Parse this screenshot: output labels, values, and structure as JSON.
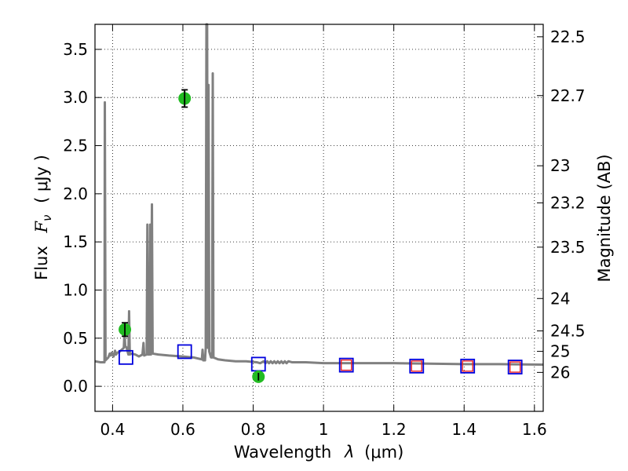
{
  "chart_data": {
    "type": "scatter",
    "xlabel_text": "Wavelength",
    "xlabel_lambda": "λ",
    "xlabel_unit": "(μm)",
    "ylabel_text": "Flux",
    "ylabel_symbol": "F",
    "ylabel_sub": "ν",
    "ylabel_unit": "( μJy )",
    "y2label": "Magnitude (AB)",
    "xlim": [
      0.35,
      1.625
    ],
    "ylim": [
      -0.26,
      3.76
    ],
    "grid": true,
    "x_ticks": [
      0.4,
      0.6,
      0.8,
      1.0,
      1.2,
      1.4,
      1.6
    ],
    "x_tick_labels": [
      "0.4",
      "0.6",
      "0.8",
      "1",
      "1.2",
      "1.4",
      "1.6"
    ],
    "y_ticks": [
      0.0,
      0.5,
      1.0,
      1.5,
      2.0,
      2.5,
      3.0,
      3.5
    ],
    "y_tick_labels": [
      "0.0",
      "0.5",
      "1.0",
      "1.5",
      "2.0",
      "2.5",
      "3.0",
      "3.5"
    ],
    "mag_ticks": [
      {
        "label": "22.5",
        "mag": 22.5
      },
      {
        "label": "22.7",
        "mag": 22.7
      },
      {
        "label": "23",
        "mag": 23.0
      },
      {
        "label": "23.2",
        "mag": 23.2
      },
      {
        "label": "23.5",
        "mag": 23.5
      },
      {
        "label": "24",
        "mag": 24.0
      },
      {
        "label": "24.5",
        "mag": 24.5
      },
      {
        "label": "25",
        "mag": 25.0
      },
      {
        "label": "26",
        "mag": 26.0
      }
    ],
    "series": [
      {
        "name": "template_spectrum",
        "kind": "line",
        "color": "#808080",
        "points": [
          [
            0.35,
            0.26
          ],
          [
            0.365,
            0.25
          ],
          [
            0.377,
            0.25
          ],
          [
            0.378,
            2.95
          ],
          [
            0.38,
            0.27
          ],
          [
            0.388,
            0.3
          ],
          [
            0.392,
            0.34
          ],
          [
            0.395,
            0.32
          ],
          [
            0.398,
            0.35
          ],
          [
            0.403,
            0.31
          ],
          [
            0.407,
            0.37
          ],
          [
            0.41,
            0.33
          ],
          [
            0.414,
            0.35
          ],
          [
            0.42,
            0.36
          ],
          [
            0.426,
            0.38
          ],
          [
            0.432,
            0.4
          ],
          [
            0.434,
            0.57
          ],
          [
            0.436,
            0.42
          ],
          [
            0.44,
            0.4
          ],
          [
            0.445,
            0.33
          ],
          [
            0.447,
            0.78
          ],
          [
            0.449,
            0.33
          ],
          [
            0.455,
            0.34
          ],
          [
            0.465,
            0.33
          ],
          [
            0.475,
            0.31
          ],
          [
            0.485,
            0.33
          ],
          [
            0.488,
            0.45
          ],
          [
            0.49,
            0.32
          ],
          [
            0.497,
            0.33
          ],
          [
            0.499,
            1.68
          ],
          [
            0.501,
            0.33
          ],
          [
            0.505,
            0.33
          ],
          [
            0.507,
            1.68
          ],
          [
            0.509,
            0.33
          ],
          [
            0.512,
            1.89
          ],
          [
            0.514,
            0.34
          ],
          [
            0.53,
            0.33
          ],
          [
            0.56,
            0.32
          ],
          [
            0.6,
            0.31
          ],
          [
            0.63,
            0.3
          ],
          [
            0.654,
            0.28
          ],
          [
            0.656,
            0.38
          ],
          [
            0.658,
            0.27
          ],
          [
            0.663,
            0.27
          ],
          [
            0.665,
            0.4
          ],
          [
            0.667,
            3.76
          ],
          [
            0.669,
            3.76
          ],
          [
            0.671,
            0.4
          ],
          [
            0.673,
            3.13
          ],
          [
            0.675,
            0.36
          ],
          [
            0.68,
            0.3
          ],
          [
            0.683,
            0.3
          ],
          [
            0.685,
            3.25
          ],
          [
            0.687,
            0.3
          ],
          [
            0.7,
            0.28
          ],
          [
            0.72,
            0.27
          ],
          [
            0.75,
            0.26
          ],
          [
            0.78,
            0.26
          ],
          [
            0.81,
            0.25
          ],
          [
            0.82,
            0.24
          ],
          [
            0.83,
            0.26
          ],
          [
            0.835,
            0.24
          ],
          [
            0.84,
            0.26
          ],
          [
            0.845,
            0.24
          ],
          [
            0.85,
            0.26
          ],
          [
            0.855,
            0.24
          ],
          [
            0.86,
            0.26
          ],
          [
            0.865,
            0.24
          ],
          [
            0.87,
            0.26
          ],
          [
            0.875,
            0.24
          ],
          [
            0.88,
            0.26
          ],
          [
            0.885,
            0.24
          ],
          [
            0.89,
            0.26
          ],
          [
            0.895,
            0.24
          ],
          [
            0.9,
            0.26
          ],
          [
            0.91,
            0.25
          ],
          [
            0.95,
            0.25
          ],
          [
            1.0,
            0.24
          ],
          [
            1.1,
            0.24
          ],
          [
            1.2,
            0.24
          ],
          [
            1.3,
            0.235
          ],
          [
            1.4,
            0.23
          ],
          [
            1.5,
            0.23
          ],
          [
            1.625,
            0.225
          ]
        ]
      },
      {
        "name": "observed",
        "kind": "points_with_errorbars",
        "color": "#22bb22",
        "points": [
          {
            "x": 0.435,
            "y": 0.59,
            "err": 0.07
          },
          {
            "x": 0.605,
            "y": 2.99,
            "err": 0.09
          },
          {
            "x": 0.815,
            "y": 0.1,
            "err": 0.04
          }
        ]
      },
      {
        "name": "model_blue",
        "kind": "open_squares",
        "color": "#0000dd",
        "points": [
          {
            "x": 0.438,
            "y": 0.3
          },
          {
            "x": 0.605,
            "y": 0.36
          },
          {
            "x": 0.815,
            "y": 0.23
          },
          {
            "x": 1.065,
            "y": 0.22
          },
          {
            "x": 1.265,
            "y": 0.21
          },
          {
            "x": 1.41,
            "y": 0.21
          },
          {
            "x": 1.545,
            "y": 0.2
          }
        ]
      },
      {
        "name": "model_red",
        "kind": "open_squares",
        "color": "#ee2222",
        "points": [
          {
            "x": 1.065,
            "y": 0.22
          },
          {
            "x": 1.265,
            "y": 0.21
          },
          {
            "x": 1.41,
            "y": 0.21
          },
          {
            "x": 1.545,
            "y": 0.2
          }
        ]
      }
    ]
  }
}
